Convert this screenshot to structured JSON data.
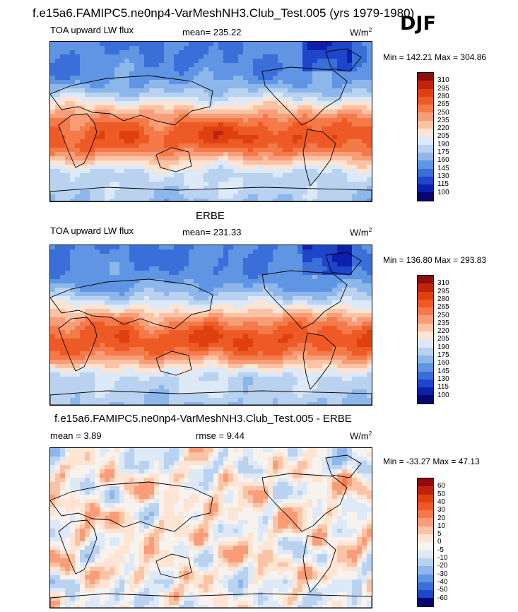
{
  "header": {
    "title": "f.e15a6.FAMIPC5.ne0np4-VarMeshNH3.Club_Test.005 (yrs 1979-1980)",
    "season": "DJF"
  },
  "panels": [
    {
      "heading": "",
      "variable": "TOA upward LW flux",
      "mean_label": "mean= 235.22",
      "rmse_label": "",
      "units": "W/m",
      "units_exp": "2",
      "min_max": "Min = 142.21 Max = 304.86"
    },
    {
      "heading": "ERBE",
      "variable": "TOA upward LW flux",
      "mean_label": "mean= 231.33",
      "rmse_label": "",
      "units": "W/m",
      "units_exp": "2",
      "min_max": "Min = 136.80 Max = 293.83"
    },
    {
      "heading": "f.e15a6.FAMIPC5.ne0np4-VarMeshNH3.Club_Test.005 - ERBE",
      "variable": "",
      "mean_label": "mean =   3.89",
      "rmse_label": "rmse =   9.44",
      "units": "W/m",
      "units_exp": "2",
      "min_max": "Min = -33.27 Max =  47.13"
    }
  ],
  "chart_data": [
    {
      "type": "heatmap",
      "title": "TOA upward LW flux",
      "subtitle": "f.e15a6.FAMIPC5.ne0np4-VarMeshNH3.Club_Test.005 (yrs 1979-1980) DJF",
      "units": "W/m2",
      "mean": 235.22,
      "min": 142.21,
      "max": 304.86,
      "colorbar_levels": [
        "310",
        "295",
        "280",
        "265",
        "250",
        "235",
        "220",
        "205",
        "190",
        "175",
        "160",
        "145",
        "130",
        "115",
        "100"
      ]
    },
    {
      "type": "heatmap",
      "title": "ERBE TOA upward LW flux",
      "units": "W/m2",
      "mean": 231.33,
      "min": 136.8,
      "max": 293.83,
      "colorbar_levels": [
        "310",
        "295",
        "280",
        "265",
        "250",
        "235",
        "220",
        "205",
        "190",
        "175",
        "160",
        "145",
        "130",
        "115",
        "100"
      ]
    },
    {
      "type": "heatmap",
      "title": "f.e15a6.FAMIPC5.ne0np4-VarMeshNH3.Club_Test.005 - ERBE",
      "units": "W/m2",
      "mean": 3.89,
      "rmse": 9.44,
      "min": -33.27,
      "max": 47.13,
      "colorbar_levels": [
        "60",
        "50",
        "40",
        "30",
        "20",
        "10",
        "5",
        "0",
        "-5",
        "-10",
        "-20",
        "-30",
        "-40",
        "-50",
        "-60"
      ]
    }
  ],
  "colors": {
    "scale": [
      "#8e0c0c",
      "#c0230d",
      "#e0400e",
      "#ee5a26",
      "#f47a4a",
      "#f89d78",
      "#fbc3a5",
      "#fde4d3",
      "#dde9f7",
      "#b8d2f0",
      "#8db7ea",
      "#5f95e2",
      "#3a6fd9",
      "#1f45cb",
      "#0d20ac",
      "#06066f"
    ]
  }
}
